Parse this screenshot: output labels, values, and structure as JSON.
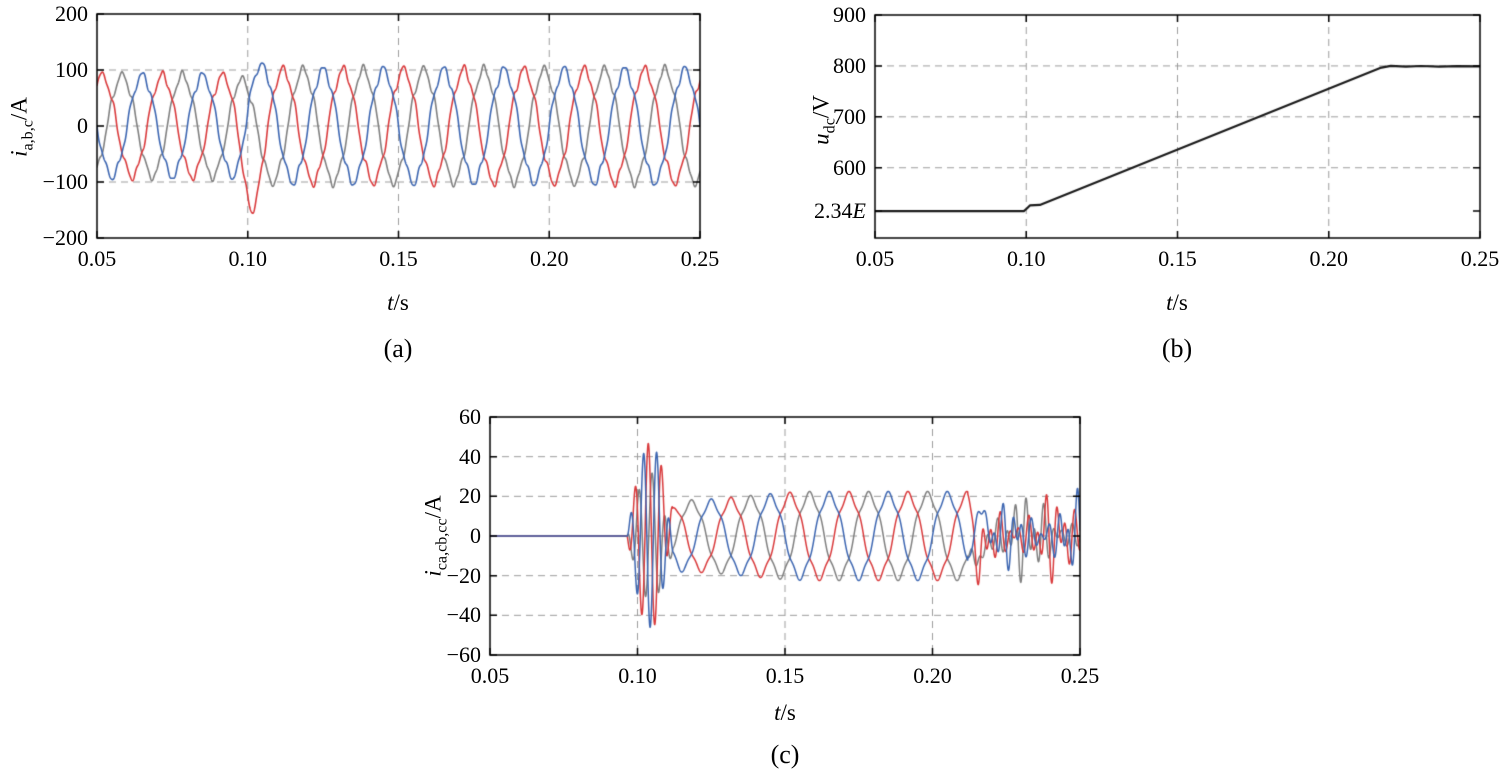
{
  "figure": {
    "background": "#ffffff"
  },
  "colors": {
    "phase_a_blue": "#3d66b1",
    "phase_b_red": "#d93a3c",
    "phase_c_gray": "#7f7f7f",
    "dc_trace": "#1a1a1a",
    "grid": "#9c9c9c",
    "axis": "#000000"
  },
  "panels": {
    "a": {
      "caption": "(a)",
      "ylabel_base": "i",
      "ylabel_sub": "a,b,c",
      "ylabel_unit": "/A",
      "xlabel_base": "t",
      "xlabel_unit": "/s"
    },
    "b": {
      "caption": "(b)",
      "ylabel_base": "u",
      "ylabel_sub": "dc",
      "ylabel_unit": "/V",
      "xlabel_base": "t",
      "xlabel_unit": "/s"
    },
    "c": {
      "caption": "(c)",
      "ylabel_base": "i",
      "ylabel_sub": "ca,cb,cc",
      "ylabel_unit": "/A",
      "xlabel_base": "t",
      "xlabel_unit": "/s"
    }
  },
  "chart_data": [
    {
      "id": "a",
      "type": "line",
      "title": "",
      "xlabel": "t/s",
      "ylabel": "i_{a,b,c}/A",
      "xlim": [
        0.05,
        0.25
      ],
      "ylim": [
        -200,
        200
      ],
      "xticks": [
        0.05,
        0.1,
        0.15,
        0.2,
        0.25
      ],
      "yticks": [
        -200,
        -100,
        0,
        100,
        200
      ],
      "grid": true,
      "legend": false,
      "series": [
        {
          "name": "i_a",
          "color": "phase_a_blue"
        },
        {
          "name": "i_b",
          "color": "phase_b_red"
        },
        {
          "name": "i_c",
          "color": "phase_c_gray"
        }
      ],
      "signal": {
        "kind": "three_phase_sine",
        "frequency_hz": 50,
        "amplitude_before_A": 90,
        "amplitude_after_A": 100,
        "step_time_s": 0.1,
        "harmonic5": 0.07,
        "phase_offsets_deg": [
          0,
          -120,
          120
        ],
        "transient": {
          "time_s": 0.101,
          "width_s": 0.0032,
          "spike_peaks_A": [
            28,
            -55,
            -16
          ]
        }
      }
    },
    {
      "id": "b",
      "type": "line",
      "title": "",
      "xlabel": "t/s",
      "ylabel": "u_dc/V",
      "xlim": [
        0.05,
        0.25
      ],
      "ylim": [
        462,
        900
      ],
      "xticks": [
        0.05,
        0.1,
        0.15,
        0.2,
        0.25
      ],
      "yticks": [
        600,
        700,
        800,
        900
      ],
      "special_ytick": {
        "value": 514.8,
        "label": "2.34E",
        "label_value": "2.34",
        "label_suffix": "E"
      },
      "grid": true,
      "legend": false,
      "series": [
        {
          "name": "u_dc",
          "color": "dc_trace",
          "points": [
            [
              0.05,
              514.8
            ],
            [
              0.0992,
              514.8
            ],
            [
              0.1002,
              520
            ],
            [
              0.1012,
              526
            ],
            [
              0.1045,
              527
            ],
            [
              0.217,
              796
            ],
            [
              0.2205,
              800
            ],
            [
              0.2255,
              798.5
            ],
            [
              0.2305,
              799.8
            ],
            [
              0.2365,
              798.6
            ],
            [
              0.2425,
              799.6
            ],
            [
              0.25,
              799.2
            ]
          ]
        }
      ]
    },
    {
      "id": "c",
      "type": "line",
      "title": "",
      "xlabel": "t/s",
      "ylabel": "i_{ca,cb,cc}/A",
      "xlim": [
        0.05,
        0.25
      ],
      "ylim": [
        -60,
        60
      ],
      "xticks": [
        0.05,
        0.1,
        0.15,
        0.2,
        0.25
      ],
      "yticks": [
        -60,
        -40,
        -20,
        0,
        20,
        40,
        60
      ],
      "grid": true,
      "legend": false,
      "series": [
        {
          "name": "i_ca",
          "color": "phase_a_blue"
        },
        {
          "name": "i_cb",
          "color": "phase_b_red"
        },
        {
          "name": "i_cc",
          "color": "phase_c_gray"
        }
      ],
      "signal": {
        "kind": "compensation_current",
        "zero_until": 0.0965,
        "transient": {
          "start": 0.0965,
          "end": 0.112,
          "frequency_hz": 225,
          "peaks": [
            46,
            -47,
            32
          ]
        },
        "steady": {
          "start": 0.108,
          "end": 0.213,
          "amplitude": 21,
          "frequency_hz": 50,
          "phase_offsets_deg": [
            0,
            -120,
            120
          ]
        },
        "chaotic": {
          "start": 0.2135,
          "end": 0.25,
          "typical_amplitude": 22,
          "spike_time_s": 0.2155,
          "spike_peaks_A": [
            20,
            -16,
            -18
          ]
        }
      }
    }
  ]
}
